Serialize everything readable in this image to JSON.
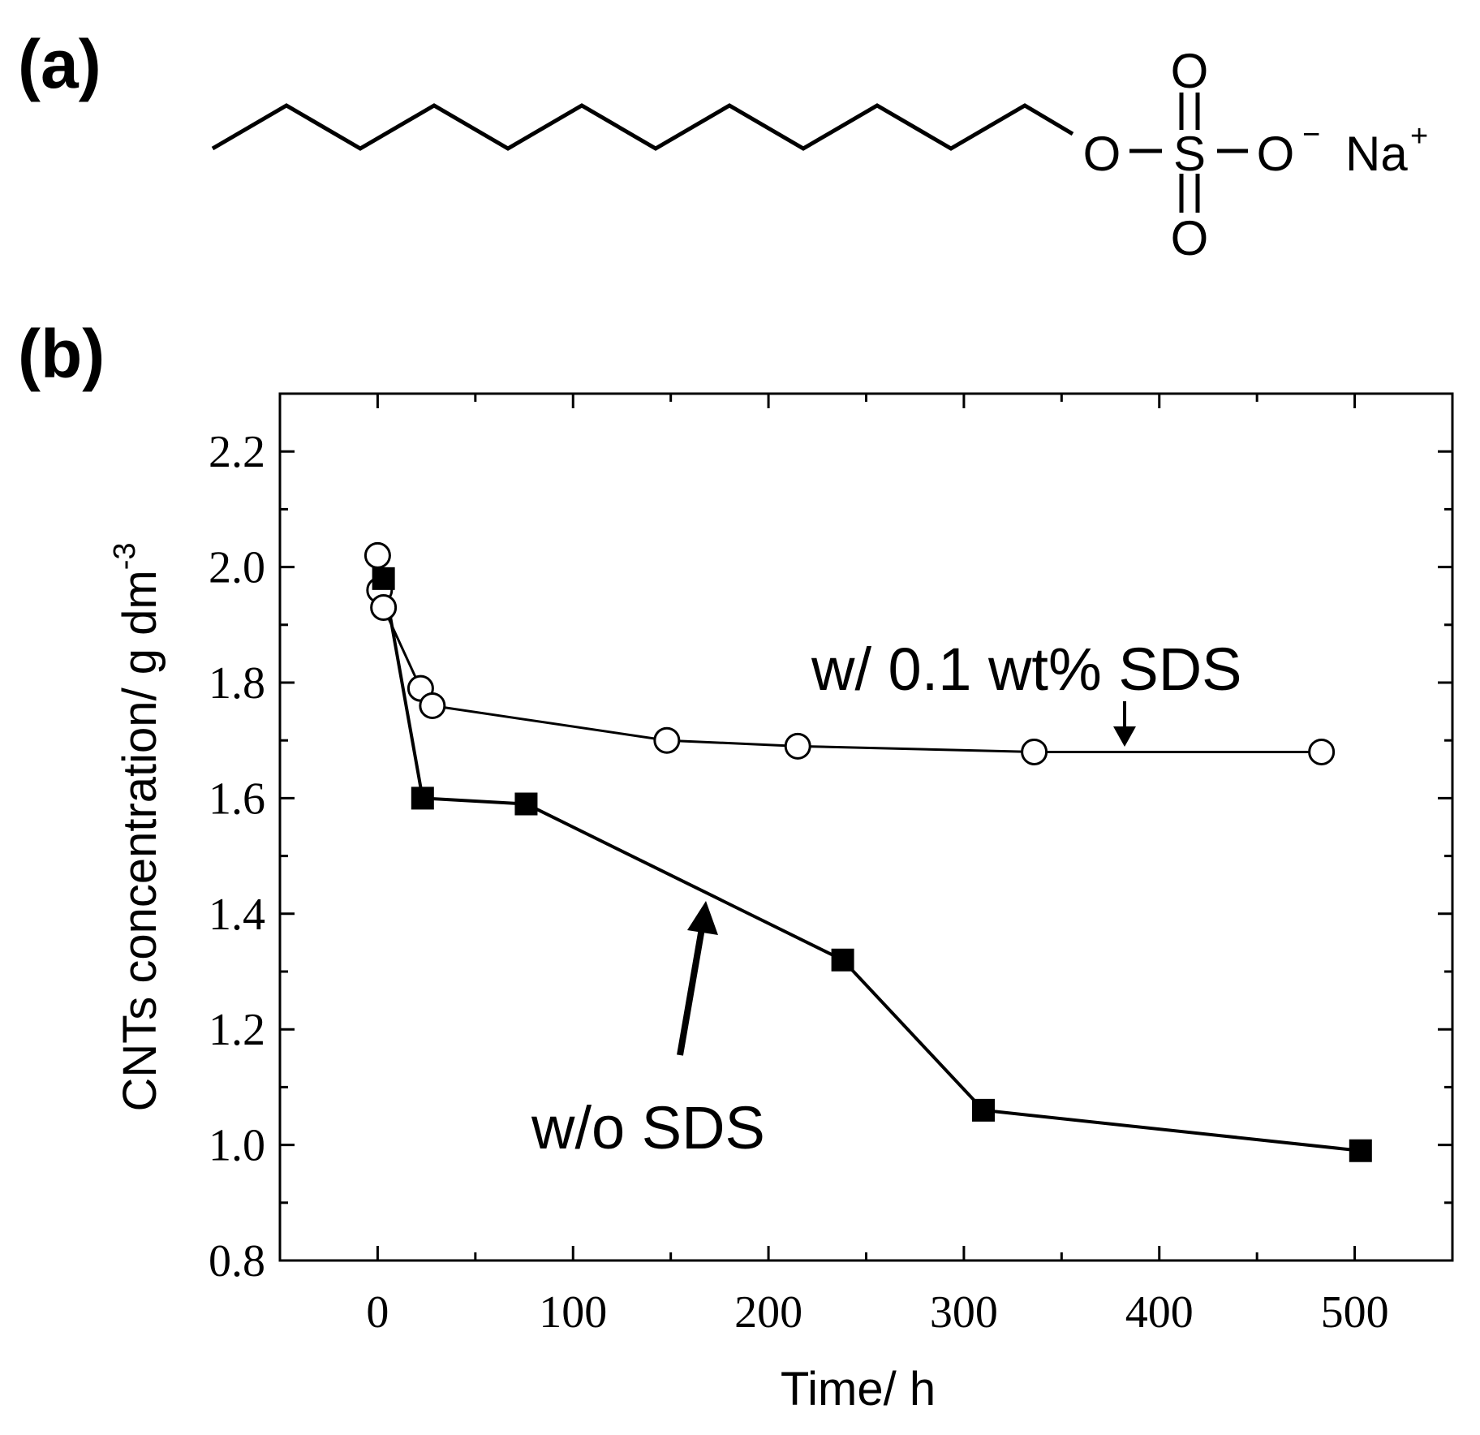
{
  "panels": {
    "a": "(a)",
    "b": "(b)"
  },
  "molecule": {
    "atoms": {
      "O_ester": "O",
      "S": "S",
      "O_top": "O",
      "O_bottom": "O",
      "O_anion": "O",
      "Na": "Na"
    },
    "charges": {
      "anion": "−",
      "cation": "+"
    }
  },
  "chart_data": {
    "type": "line",
    "xlabel": "Time/ h",
    "ylabel": "CNTs concentration/ g dm",
    "ylabel_superscript": "-3",
    "xlim": [
      -50,
      550
    ],
    "ylim": [
      0.8,
      2.3
    ],
    "xticks": [
      0,
      100,
      200,
      300,
      400,
      500
    ],
    "xtick_labels": [
      "0",
      "100",
      "200",
      "300",
      "400",
      "500"
    ],
    "yticks": [
      0.8,
      1.0,
      1.2,
      1.4,
      1.6,
      1.8,
      2.0,
      2.2
    ],
    "ytick_labels": [
      "0.8",
      "1.0",
      "1.2",
      "1.4",
      "1.6",
      "1.8",
      "2.0",
      "2.2"
    ],
    "grid": false,
    "series": [
      {
        "name": "w/ 0.1 wt% SDS",
        "marker": "open-circle",
        "x": [
          0,
          1,
          3,
          22,
          28,
          148,
          215,
          336,
          483
        ],
        "y": [
          2.02,
          1.96,
          1.93,
          1.79,
          1.76,
          1.7,
          1.69,
          1.68,
          1.68
        ]
      },
      {
        "name": "w/o SDS",
        "marker": "filled-square",
        "x": [
          3,
          23,
          76,
          238,
          310,
          503
        ],
        "y": [
          1.98,
          1.6,
          1.59,
          1.32,
          1.06,
          0.99
        ]
      }
    ],
    "annotations": [
      {
        "text": "w/ 0.1 wt% SDS"
      },
      {
        "text": "w/o SDS"
      }
    ]
  }
}
